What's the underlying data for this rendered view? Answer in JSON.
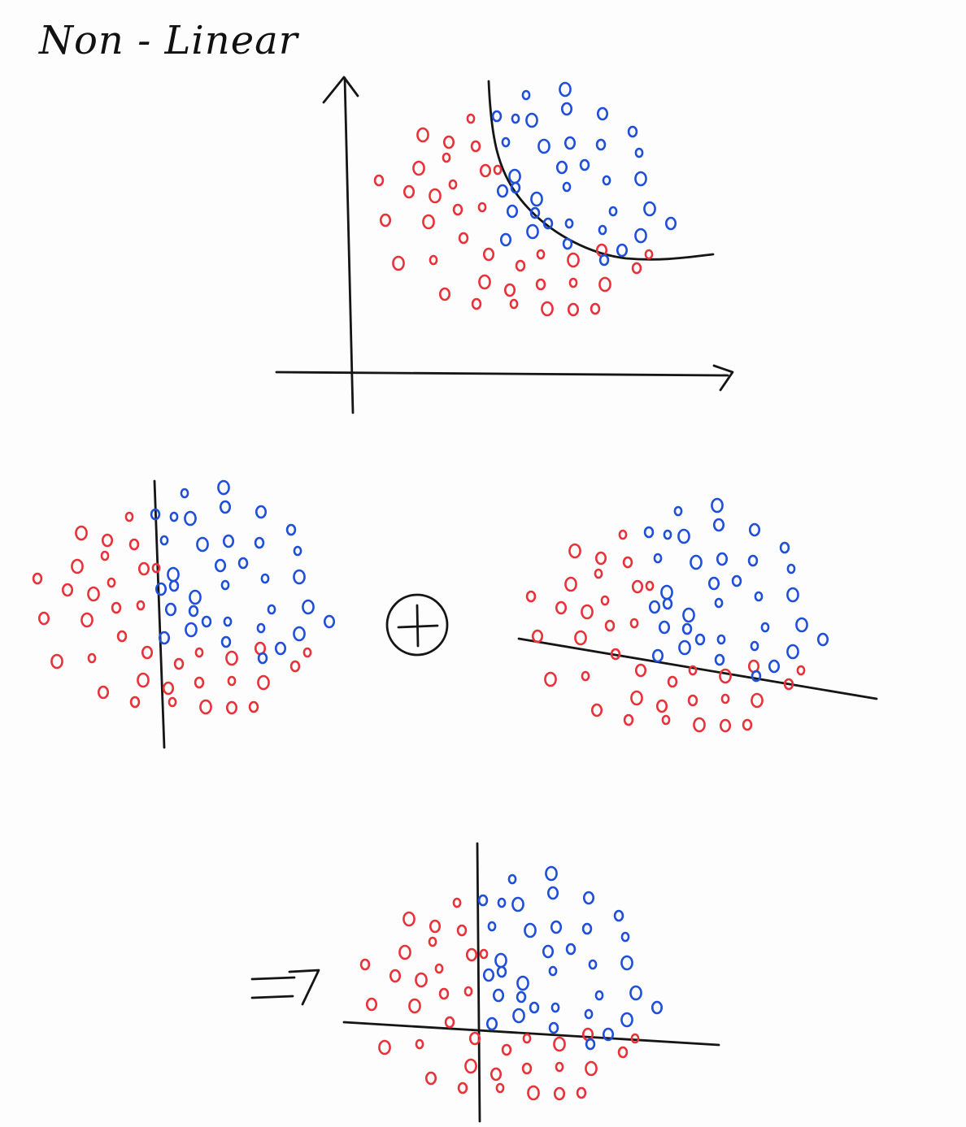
{
  "title": "Non - Linear",
  "colors": {
    "class_a": "#e8323a",
    "class_b": "#1f4fd8",
    "ink": "#151515",
    "background": "#fdfdfd"
  },
  "operators": {
    "combine": "+",
    "result": "=7"
  }
}
